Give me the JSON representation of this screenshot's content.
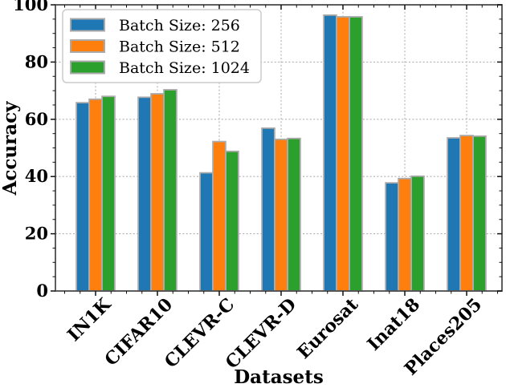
{
  "chart_data": {
    "type": "bar",
    "title": "",
    "xlabel": "Datasets",
    "ylabel": "Accuracy",
    "ylim": [
      0,
      100
    ],
    "yticks": [
      0,
      20,
      40,
      60,
      80,
      100
    ],
    "grid": true,
    "grid_style": "dashed",
    "legend_position": "upper left",
    "categories": [
      "IN1K",
      "CIFAR10",
      "CLEVR-C",
      "CLEVR-D",
      "Eurosat",
      "Inat18",
      "Places205"
    ],
    "series": [
      {
        "name": "Batch Size: 256",
        "color": "#1f77b4",
        "values": [
          65.8,
          67.7,
          41.3,
          56.9,
          96.4,
          37.8,
          53.5
        ]
      },
      {
        "name": "Batch Size: 512",
        "color": "#ff7f0e",
        "values": [
          67.0,
          68.9,
          52.2,
          53.0,
          95.8,
          39.3,
          54.3
        ]
      },
      {
        "name": "Batch Size: 1024",
        "color": "#2ca02c",
        "values": [
          68.0,
          70.3,
          48.8,
          53.3,
          95.8,
          40.1,
          54.1
        ]
      }
    ],
    "bar_edge_color": "#aaaaaa",
    "grid_color": "#b0b0b0",
    "spine_color": "#4d4d4d",
    "tick_color": "#111111",
    "background": "#ffffff"
  }
}
